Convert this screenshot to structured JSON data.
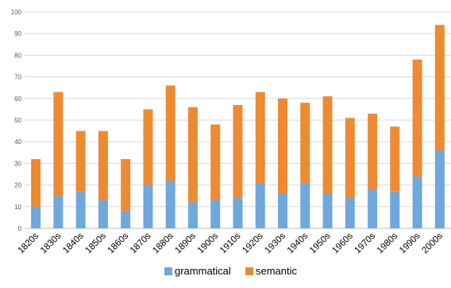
{
  "chart_data": {
    "type": "bar",
    "stacked": true,
    "categories": [
      "1820s",
      "1830s",
      "1840s",
      "1850s",
      "1860s",
      "1870s",
      "1880s",
      "1890s",
      "1900s",
      "1910s",
      "1920s",
      "1930s",
      "1940s",
      "1950s",
      "1960s",
      "1970s",
      "1980s",
      "1990s",
      "2000s"
    ],
    "series": [
      {
        "name": "grammatical",
        "color": "#6fa8dc",
        "values": [
          10,
          15,
          17,
          13,
          8,
          20,
          22,
          12,
          13,
          14,
          21,
          16,
          21,
          16,
          14,
          18,
          17,
          24,
          36
        ]
      },
      {
        "name": "semantic",
        "color": "#ed8b32",
        "values": [
          22,
          48,
          28,
          32,
          24,
          35,
          44,
          44,
          35,
          43,
          42,
          44,
          37,
          45,
          37,
          35,
          30,
          54,
          58
        ]
      }
    ],
    "ylim": [
      0,
      100
    ],
    "yticks": [
      0,
      10,
      20,
      30,
      40,
      50,
      60,
      70,
      80,
      90,
      100
    ],
    "grid": true,
    "legend_position": "bottom"
  }
}
